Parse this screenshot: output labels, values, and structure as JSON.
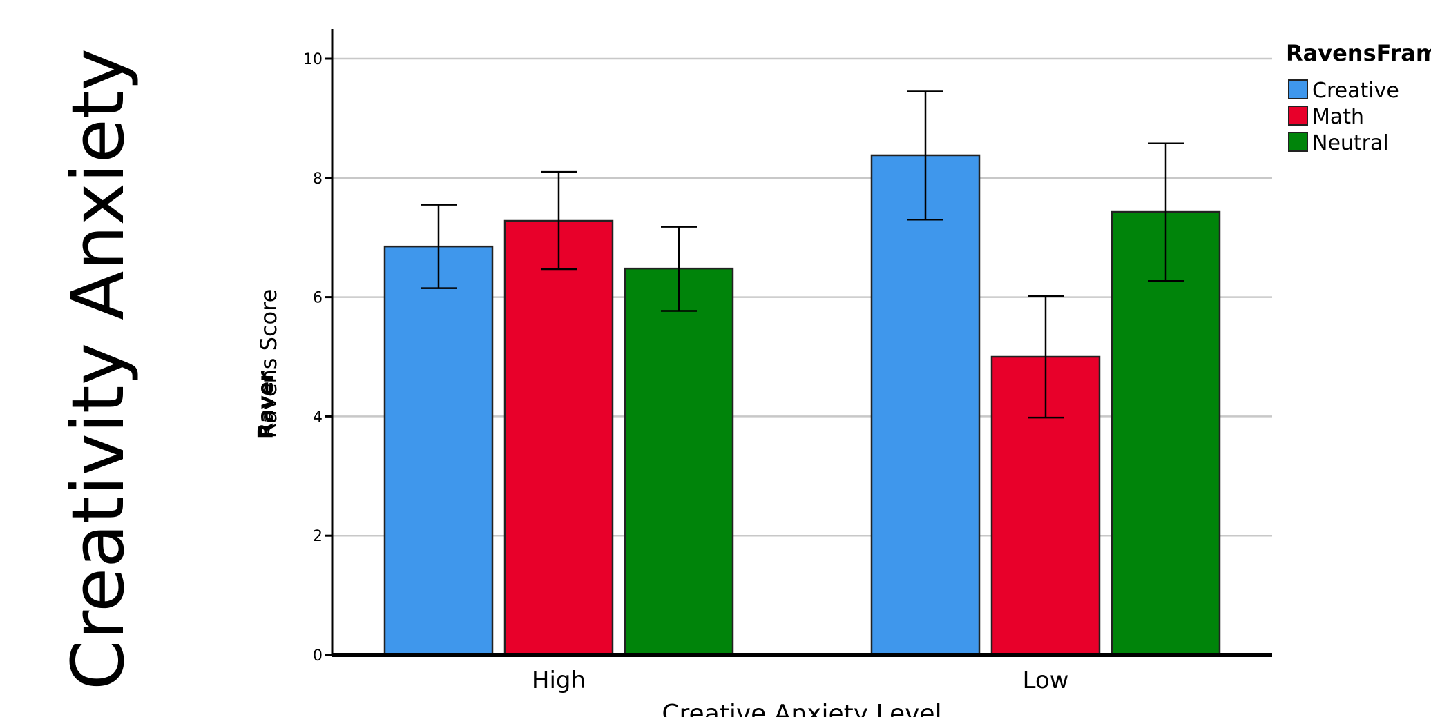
{
  "side_title": "Creativity Anxiety",
  "chart_data": {
    "type": "bar",
    "categories": [
      "High",
      "Low"
    ],
    "series": [
      {
        "name": "Creative",
        "color": "#3f97ec",
        "values": [
          6.85,
          8.38
        ],
        "error_low": [
          6.15,
          7.3
        ],
        "error_high": [
          7.55,
          9.45
        ]
      },
      {
        "name": "Math",
        "color": "#e8002a",
        "values": [
          7.28,
          5.0
        ],
        "error_low": [
          6.47,
          3.98
        ],
        "error_high": [
          8.1,
          6.02
        ]
      },
      {
        "name": "Neutral",
        "color": "#00840a",
        "values": [
          6.48,
          7.43
        ],
        "error_low": [
          5.77,
          6.27
        ],
        "error_high": [
          7.18,
          8.58
        ]
      }
    ],
    "xlabel": "Creative Anxiety Level",
    "ylabel": "Ravens Score",
    "ylabel_overlap": "Raver",
    "legend_title": "RavensFram",
    "legend_position": "top-right",
    "ylim": [
      0,
      10.5
    ],
    "yticks": [
      0,
      2,
      4,
      6,
      8,
      10
    ],
    "grid": true
  }
}
